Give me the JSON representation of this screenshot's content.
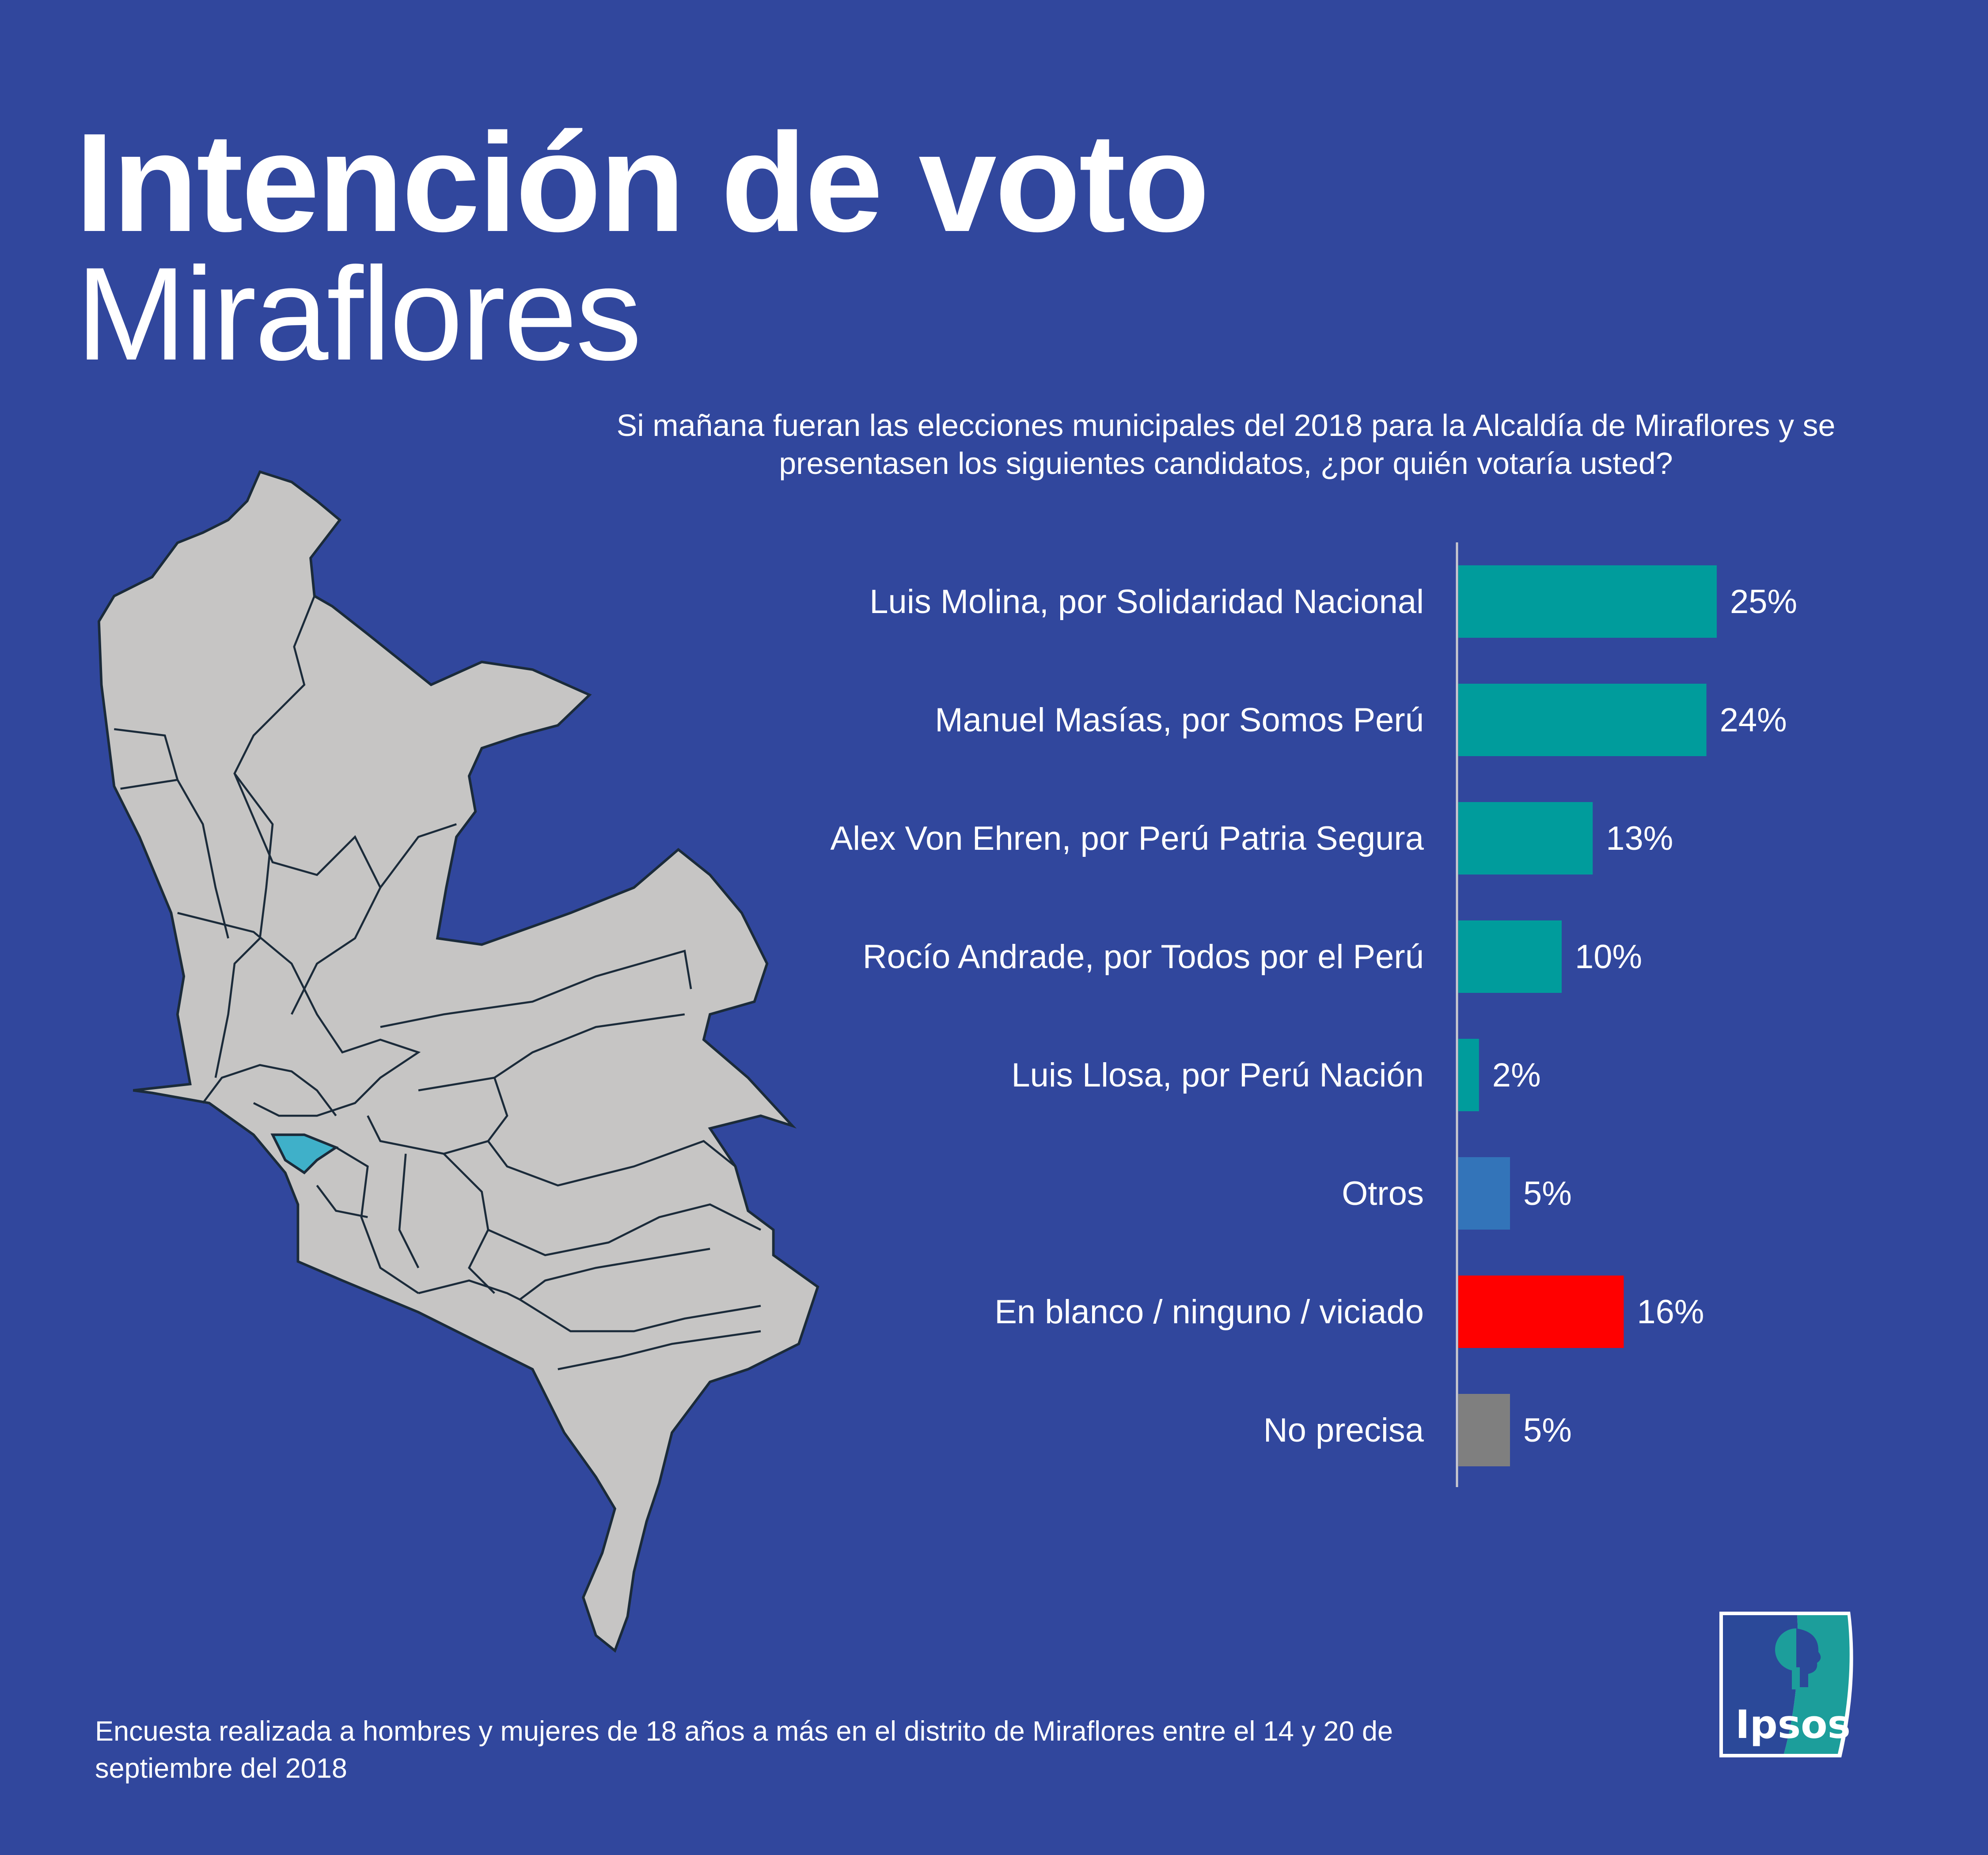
{
  "header": {
    "title": "Intención de voto",
    "subtitle": "Miraflores",
    "question": "Si mañana fueran las elecciones municipales del 2018 para la Alcaldía de Miraflores y se presentasen los siguientes candidatos, ¿por quién votaría usted?"
  },
  "map": {
    "highlighted_district": "Miraflores",
    "land_color": "#c6c5c4",
    "highlight_color": "#3fb0c9"
  },
  "chart_data": {
    "type": "bar",
    "orientation": "horizontal",
    "title": "",
    "xlabel": "",
    "ylabel": "",
    "xlim": [
      0,
      25
    ],
    "grid": false,
    "categories": [
      "Luis Molina, por Solidaridad Nacional",
      "Manuel Masías, por Somos Perú",
      "Alex Von Ehren, por Perú Patria Segura",
      "Rocío Andrade, por Todos por el Perú",
      "Luis Llosa, por Perú Nación",
      "Otros",
      "En blanco / ninguno / viciado",
      "No precisa"
    ],
    "values": [
      25,
      24,
      13,
      10,
      2,
      5,
      16,
      5
    ],
    "data_labels": [
      "25%",
      "24%",
      "13%",
      "10%",
      "2%",
      "5%",
      "16%",
      "5%"
    ],
    "colors": [
      "#009c9c",
      "#009c9c",
      "#009c9c",
      "#009c9c",
      "#009c9c",
      "#3374b9",
      "#ff0000",
      "#7f7f7f"
    ]
  },
  "footer": {
    "note": "Encuesta realizada a hombres y mujeres de 18 años a más en el distrito de Miraflores entre el 14 y 20 de septiembre del 2018"
  },
  "logo": {
    "text": "Ipsos",
    "colors": {
      "left": "#2b4999",
      "right": "#1c9e9b"
    }
  }
}
